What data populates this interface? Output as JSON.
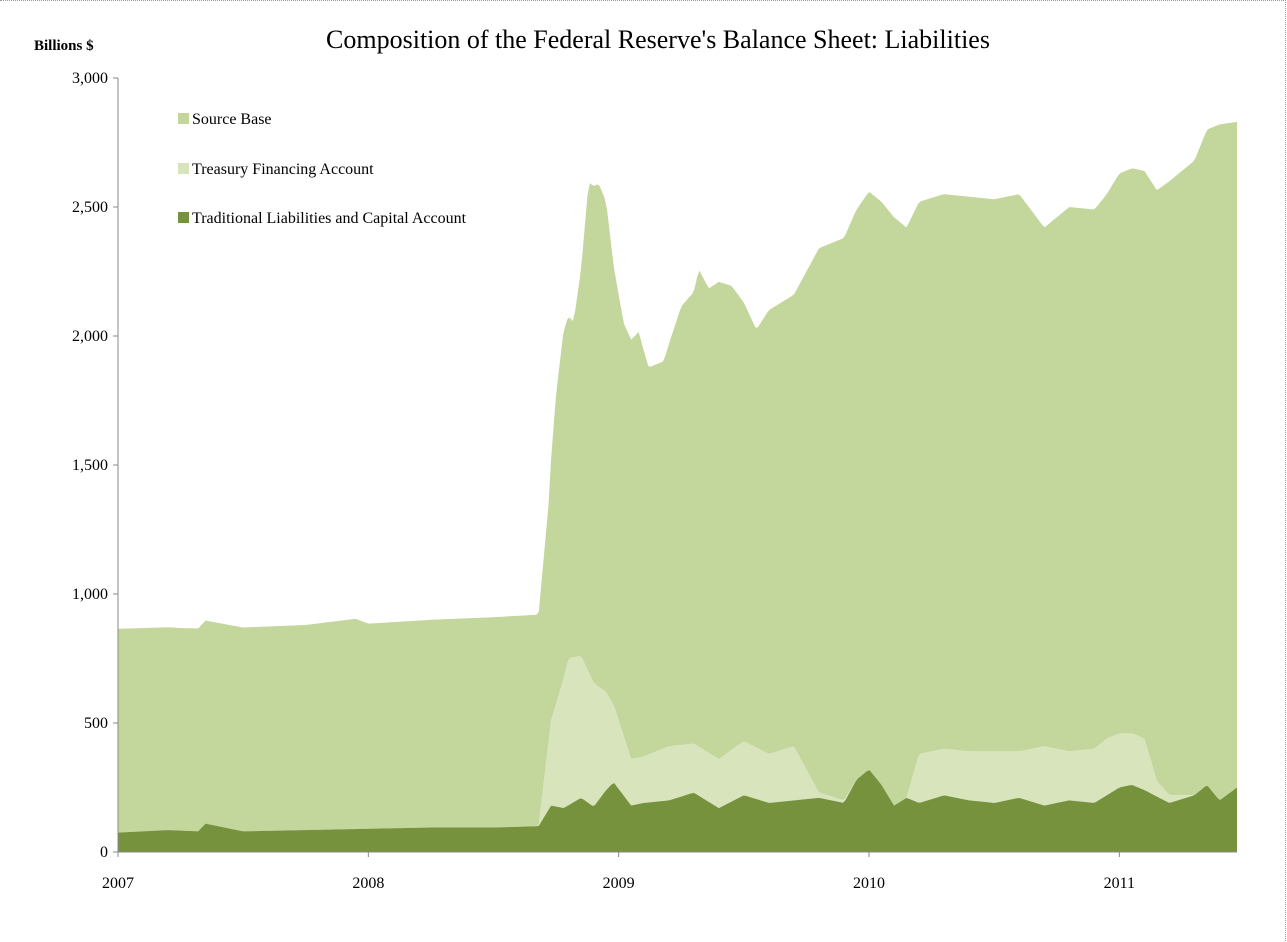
{
  "chart_data": {
    "type": "area",
    "stacked": true,
    "title": "Composition of the Federal Reserve's Balance Sheet: Liabilities",
    "ylabel": "Billions $",
    "xlabel": "",
    "ylim": [
      0,
      3000
    ],
    "xlim": [
      2007.0,
      2011.47
    ],
    "yticks": [
      0,
      500,
      1000,
      1500,
      2000,
      2500,
      3000
    ],
    "ytick_labels": [
      "0",
      "500",
      "1,000",
      "1,500",
      "2,000",
      "2,500",
      "3,000"
    ],
    "xticks": [
      2007,
      2008,
      2009,
      2010,
      2011
    ],
    "xtick_labels": [
      "2007",
      "2008",
      "2009",
      "2010",
      "2011"
    ],
    "grid": false,
    "legend_position": "top-left",
    "colors": {
      "source_base": "#c3d69b",
      "treasury_financing": "#d8e4bc",
      "traditional": "#76923c"
    },
    "legend": [
      {
        "label": "Source Base",
        "color": "#c3d69b"
      },
      {
        "label": "Treasury Financing Account",
        "color": "#d8e4bc"
      },
      {
        "label": "Traditional Liabilities and Capital Account",
        "color": "#76923c"
      }
    ],
    "series": [
      {
        "name": "Traditional Liabilities and Capital Account",
        "x": [
          2007.0,
          2007.2,
          2007.32,
          2007.35,
          2007.5,
          2007.75,
          2008.0,
          2008.25,
          2008.5,
          2008.68,
          2008.73,
          2008.78,
          2008.85,
          2008.9,
          2008.95,
          2008.98,
          2009.05,
          2009.1,
          2009.2,
          2009.3,
          2009.4,
          2009.5,
          2009.6,
          2009.7,
          2009.8,
          2009.9,
          2009.95,
          2010.0,
          2010.05,
          2010.1,
          2010.15,
          2010.2,
          2010.3,
          2010.4,
          2010.5,
          2010.6,
          2010.7,
          2010.8,
          2010.9,
          2011.0,
          2011.05,
          2011.1,
          2011.2,
          2011.3,
          2011.35,
          2011.4,
          2011.47
        ],
        "values": [
          75,
          85,
          80,
          110,
          80,
          85,
          90,
          95,
          95,
          100,
          180,
          170,
          210,
          175,
          240,
          270,
          180,
          190,
          200,
          230,
          170,
          220,
          190,
          200,
          210,
          190,
          280,
          320,
          260,
          180,
          210,
          190,
          220,
          200,
          190,
          210,
          180,
          200,
          190,
          250,
          260,
          240,
          190,
          220,
          260,
          200,
          250
        ]
      },
      {
        "name": "Treasury Financing Account",
        "x": [
          2007.0,
          2008.68,
          2008.73,
          2008.8,
          2008.85,
          2008.9,
          2008.95,
          2008.98,
          2009.05,
          2009.1,
          2009.2,
          2009.3,
          2009.4,
          2009.5,
          2009.6,
          2009.7,
          2009.8,
          2009.9,
          2009.95,
          2010.0,
          2010.05,
          2010.1,
          2010.15,
          2010.2,
          2010.3,
          2010.4,
          2010.5,
          2010.6,
          2010.7,
          2010.8,
          2010.9,
          2010.95,
          2011.0,
          2011.05,
          2011.1,
          2011.15,
          2011.2,
          2011.3,
          2011.35,
          2011.4,
          2011.47
        ],
        "values": [
          0,
          0,
          330,
          570,
          550,
          480,
          380,
          300,
          180,
          180,
          210,
          190,
          190,
          210,
          190,
          210,
          20,
          10,
          0,
          0,
          0,
          0,
          0,
          190,
          180,
          190,
          200,
          180,
          230,
          190,
          210,
          220,
          210,
          200,
          200,
          60,
          30,
          0,
          0,
          0,
          0
        ]
      },
      {
        "name": "Source Base",
        "x": [
          2007.0,
          2007.25,
          2007.5,
          2007.75,
          2007.95,
          2008.0,
          2008.25,
          2008.5,
          2008.68,
          2008.72,
          2008.75,
          2008.78,
          2008.82,
          2008.85,
          2008.88,
          2008.92,
          2008.95,
          2008.98,
          2009.02,
          2009.08,
          2009.12,
          2009.18,
          2009.25,
          2009.3,
          2009.32,
          2009.36,
          2009.4,
          2009.45,
          2009.5,
          2009.55,
          2009.6,
          2009.7,
          2009.8,
          2009.9,
          2010.0,
          2010.1,
          2010.2,
          2010.3,
          2010.4,
          2010.5,
          2010.6,
          2010.7,
          2010.8,
          2010.9,
          2010.95,
          2011.0,
          2011.05,
          2011.1,
          2011.2,
          2011.3,
          2011.4,
          2011.47
        ],
        "values": [
          790,
          785,
          790,
          795,
          815,
          795,
          805,
          815,
          820,
          920,
          1200,
          1350,
          1300,
          1500,
          1900,
          1950,
          1900,
          1700,
          1600,
          1650,
          1500,
          1500,
          1700,
          1750,
          1850,
          1800,
          1850,
          1800,
          1700,
          1620,
          1720,
          1750,
          2110,
          2180,
          2240,
          2280,
          2140,
          2150,
          2150,
          2140,
          2160,
          2010,
          2110,
          2090,
          2110,
          2170,
          2190,
          2200,
          2380,
          2460,
          2620,
          2580
        ]
      }
    ]
  }
}
